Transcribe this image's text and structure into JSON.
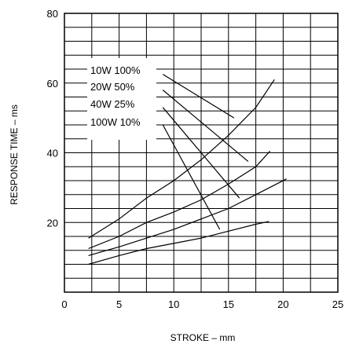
{
  "chart_data": {
    "type": "line",
    "xlabel": "STROKE – mm",
    "ylabel": "RESPONSE TIME – ms",
    "xlim": [
      0,
      25
    ],
    "ylim": [
      0,
      80
    ],
    "x_ticks": [
      "0",
      "5",
      "10",
      "15",
      "20",
      "25"
    ],
    "y_ticks": [
      "20",
      "40",
      "60",
      "80"
    ],
    "grid": true,
    "grid_x_step": 2.5,
    "grid_y_step": 4,
    "legend_labels": [
      "10W  100%",
      "20W  50%",
      "40W  25%",
      "100W 10%"
    ],
    "rising_curves": [
      {
        "x": [
          2.2,
          5,
          7.5,
          10,
          12.5,
          15,
          17.5,
          19.2
        ],
        "y": [
          15.5,
          21,
          27,
          32,
          38,
          45,
          53,
          61
        ]
      },
      {
        "x": [
          2.2,
          5,
          7.5,
          10,
          12.5,
          15,
          17.5,
          18.8
        ],
        "y": [
          12.5,
          16,
          20,
          23,
          26.5,
          31,
          36,
          40.5
        ]
      },
      {
        "x": [
          2.2,
          5,
          7.5,
          10,
          12.5,
          15,
          17.5,
          20.3
        ],
        "y": [
          10.5,
          13,
          15.5,
          18,
          21,
          24,
          28,
          32.5
        ]
      },
      {
        "x": [
          2.2,
          5,
          7.5,
          10,
          12.5,
          15,
          17.5,
          18.7
        ],
        "y": [
          8,
          10.5,
          12.5,
          14,
          15.5,
          17.5,
          19.5,
          20.3
        ]
      }
    ],
    "pointer_lines": [
      {
        "from": [
          9.0,
          62.5
        ],
        "to": [
          15.5,
          50
        ]
      },
      {
        "from": [
          9.0,
          58.0
        ],
        "to": [
          16.8,
          37.5
        ]
      },
      {
        "from": [
          9.0,
          53.0
        ],
        "to": [
          16.0,
          27.0
        ]
      },
      {
        "from": [
          9.0,
          48.0
        ],
        "to": [
          14.2,
          18.0
        ]
      }
    ]
  }
}
